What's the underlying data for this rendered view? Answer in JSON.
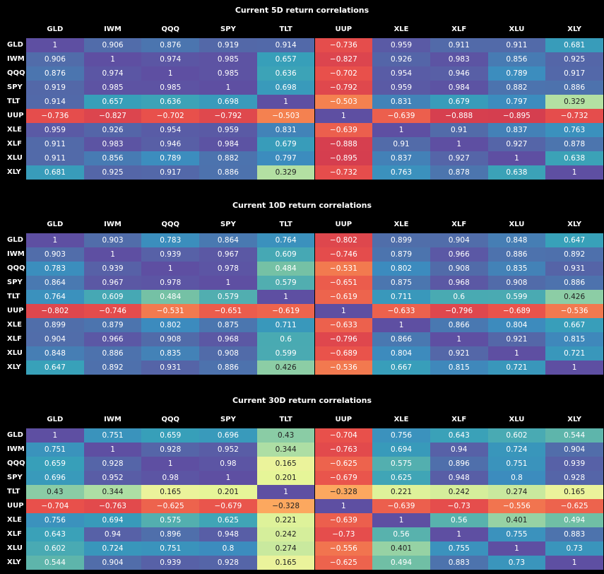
{
  "chart_data": [
    {
      "type": "heatmap",
      "title": "Current 5D return correlations",
      "x": [
        "GLD",
        "IWM",
        "QQQ",
        "SPY",
        "TLT",
        "UUP",
        "XLE",
        "XLF",
        "XLU",
        "XLY"
      ],
      "y": [
        "GLD",
        "IWM",
        "QQQ",
        "SPY",
        "TLT",
        "UUP",
        "XLE",
        "XLF",
        "XLU",
        "XLY"
      ],
      "values": [
        [
          1,
          0.906,
          0.876,
          0.919,
          0.914,
          -0.736,
          0.959,
          0.911,
          0.911,
          0.681
        ],
        [
          0.906,
          1,
          0.974,
          0.985,
          0.657,
          -0.827,
          0.926,
          0.983,
          0.856,
          0.925
        ],
        [
          0.876,
          0.974,
          1,
          0.985,
          0.636,
          -0.702,
          0.954,
          0.946,
          0.789,
          0.917
        ],
        [
          0.919,
          0.985,
          0.985,
          1,
          0.698,
          -0.792,
          0.959,
          0.984,
          0.882,
          0.886
        ],
        [
          0.914,
          0.657,
          0.636,
          0.698,
          1,
          -0.503,
          0.831,
          0.679,
          0.797,
          0.329
        ],
        [
          -0.736,
          -0.827,
          -0.702,
          -0.792,
          -0.503,
          1,
          -0.639,
          -0.888,
          -0.895,
          -0.732
        ],
        [
          0.959,
          0.926,
          0.954,
          0.959,
          0.831,
          -0.639,
          1,
          0.91,
          0.837,
          0.763
        ],
        [
          0.911,
          0.983,
          0.946,
          0.984,
          0.679,
          -0.888,
          0.91,
          1,
          0.927,
          0.878
        ],
        [
          0.911,
          0.856,
          0.789,
          0.882,
          0.797,
          -0.895,
          0.837,
          0.927,
          1,
          0.638
        ],
        [
          0.681,
          0.925,
          0.917,
          0.886,
          0.329,
          -0.732,
          0.763,
          0.878,
          0.638,
          1
        ]
      ]
    },
    {
      "type": "heatmap",
      "title": "Current 10D return correlations",
      "x": [
        "GLD",
        "IWM",
        "QQQ",
        "SPY",
        "TLT",
        "UUP",
        "XLE",
        "XLF",
        "XLU",
        "XLY"
      ],
      "y": [
        "GLD",
        "IWM",
        "QQQ",
        "SPY",
        "TLT",
        "UUP",
        "XLE",
        "XLF",
        "XLU",
        "XLY"
      ],
      "values": [
        [
          1,
          0.903,
          0.783,
          0.864,
          0.764,
          -0.802,
          0.899,
          0.904,
          0.848,
          0.647
        ],
        [
          0.903,
          1,
          0.939,
          0.967,
          0.609,
          -0.746,
          0.879,
          0.966,
          0.886,
          0.892
        ],
        [
          0.783,
          0.939,
          1,
          0.978,
          0.484,
          -0.531,
          0.802,
          0.908,
          0.835,
          0.931
        ],
        [
          0.864,
          0.967,
          0.978,
          1,
          0.579,
          -0.651,
          0.875,
          0.968,
          0.908,
          0.886
        ],
        [
          0.764,
          0.609,
          0.484,
          0.579,
          1,
          -0.619,
          0.711,
          0.6,
          0.599,
          0.426
        ],
        [
          -0.802,
          -0.746,
          -0.531,
          -0.651,
          -0.619,
          1,
          -0.633,
          -0.796,
          -0.689,
          -0.536
        ],
        [
          0.899,
          0.879,
          0.802,
          0.875,
          0.711,
          -0.633,
          1,
          0.866,
          0.804,
          0.667
        ],
        [
          0.904,
          0.966,
          0.908,
          0.968,
          0.6,
          -0.796,
          0.866,
          1,
          0.921,
          0.815
        ],
        [
          0.848,
          0.886,
          0.835,
          0.908,
          0.599,
          -0.689,
          0.804,
          0.921,
          1,
          0.721
        ],
        [
          0.647,
          0.892,
          0.931,
          0.886,
          0.426,
          -0.536,
          0.667,
          0.815,
          0.721,
          1
        ]
      ]
    },
    {
      "type": "heatmap",
      "title": "Current 30D return correlations",
      "x": [
        "GLD",
        "IWM",
        "QQQ",
        "SPY",
        "TLT",
        "UUP",
        "XLE",
        "XLF",
        "XLU",
        "XLY"
      ],
      "y": [
        "GLD",
        "IWM",
        "QQQ",
        "SPY",
        "TLT",
        "UUP",
        "XLE",
        "XLF",
        "XLU",
        "XLY"
      ],
      "values": [
        [
          1,
          0.751,
          0.659,
          0.696,
          0.43,
          -0.704,
          0.756,
          0.643,
          0.602,
          0.544
        ],
        [
          0.751,
          1,
          0.928,
          0.952,
          0.344,
          -0.763,
          0.694,
          0.94,
          0.724,
          0.904
        ],
        [
          0.659,
          0.928,
          1,
          0.98,
          0.165,
          -0.625,
          0.575,
          0.896,
          0.751,
          0.939
        ],
        [
          0.696,
          0.952,
          0.98,
          1,
          0.201,
          -0.679,
          0.625,
          0.948,
          0.8,
          0.928
        ],
        [
          0.43,
          0.344,
          0.165,
          0.201,
          1,
          -0.328,
          0.221,
          0.242,
          0.274,
          0.165
        ],
        [
          -0.704,
          -0.763,
          -0.625,
          -0.679,
          -0.328,
          1,
          -0.639,
          -0.73,
          -0.556,
          -0.625
        ],
        [
          0.756,
          0.694,
          0.575,
          0.625,
          0.221,
          -0.639,
          1,
          0.56,
          0.401,
          0.494
        ],
        [
          0.643,
          0.94,
          0.896,
          0.948,
          0.242,
          -0.73,
          0.56,
          1,
          0.755,
          0.883
        ],
        [
          0.602,
          0.724,
          0.751,
          0.8,
          0.274,
          -0.556,
          0.401,
          0.755,
          1,
          0.73
        ],
        [
          0.544,
          0.904,
          0.939,
          0.928,
          0.165,
          -0.625,
          0.494,
          0.883,
          0.73,
          1
        ]
      ]
    }
  ]
}
